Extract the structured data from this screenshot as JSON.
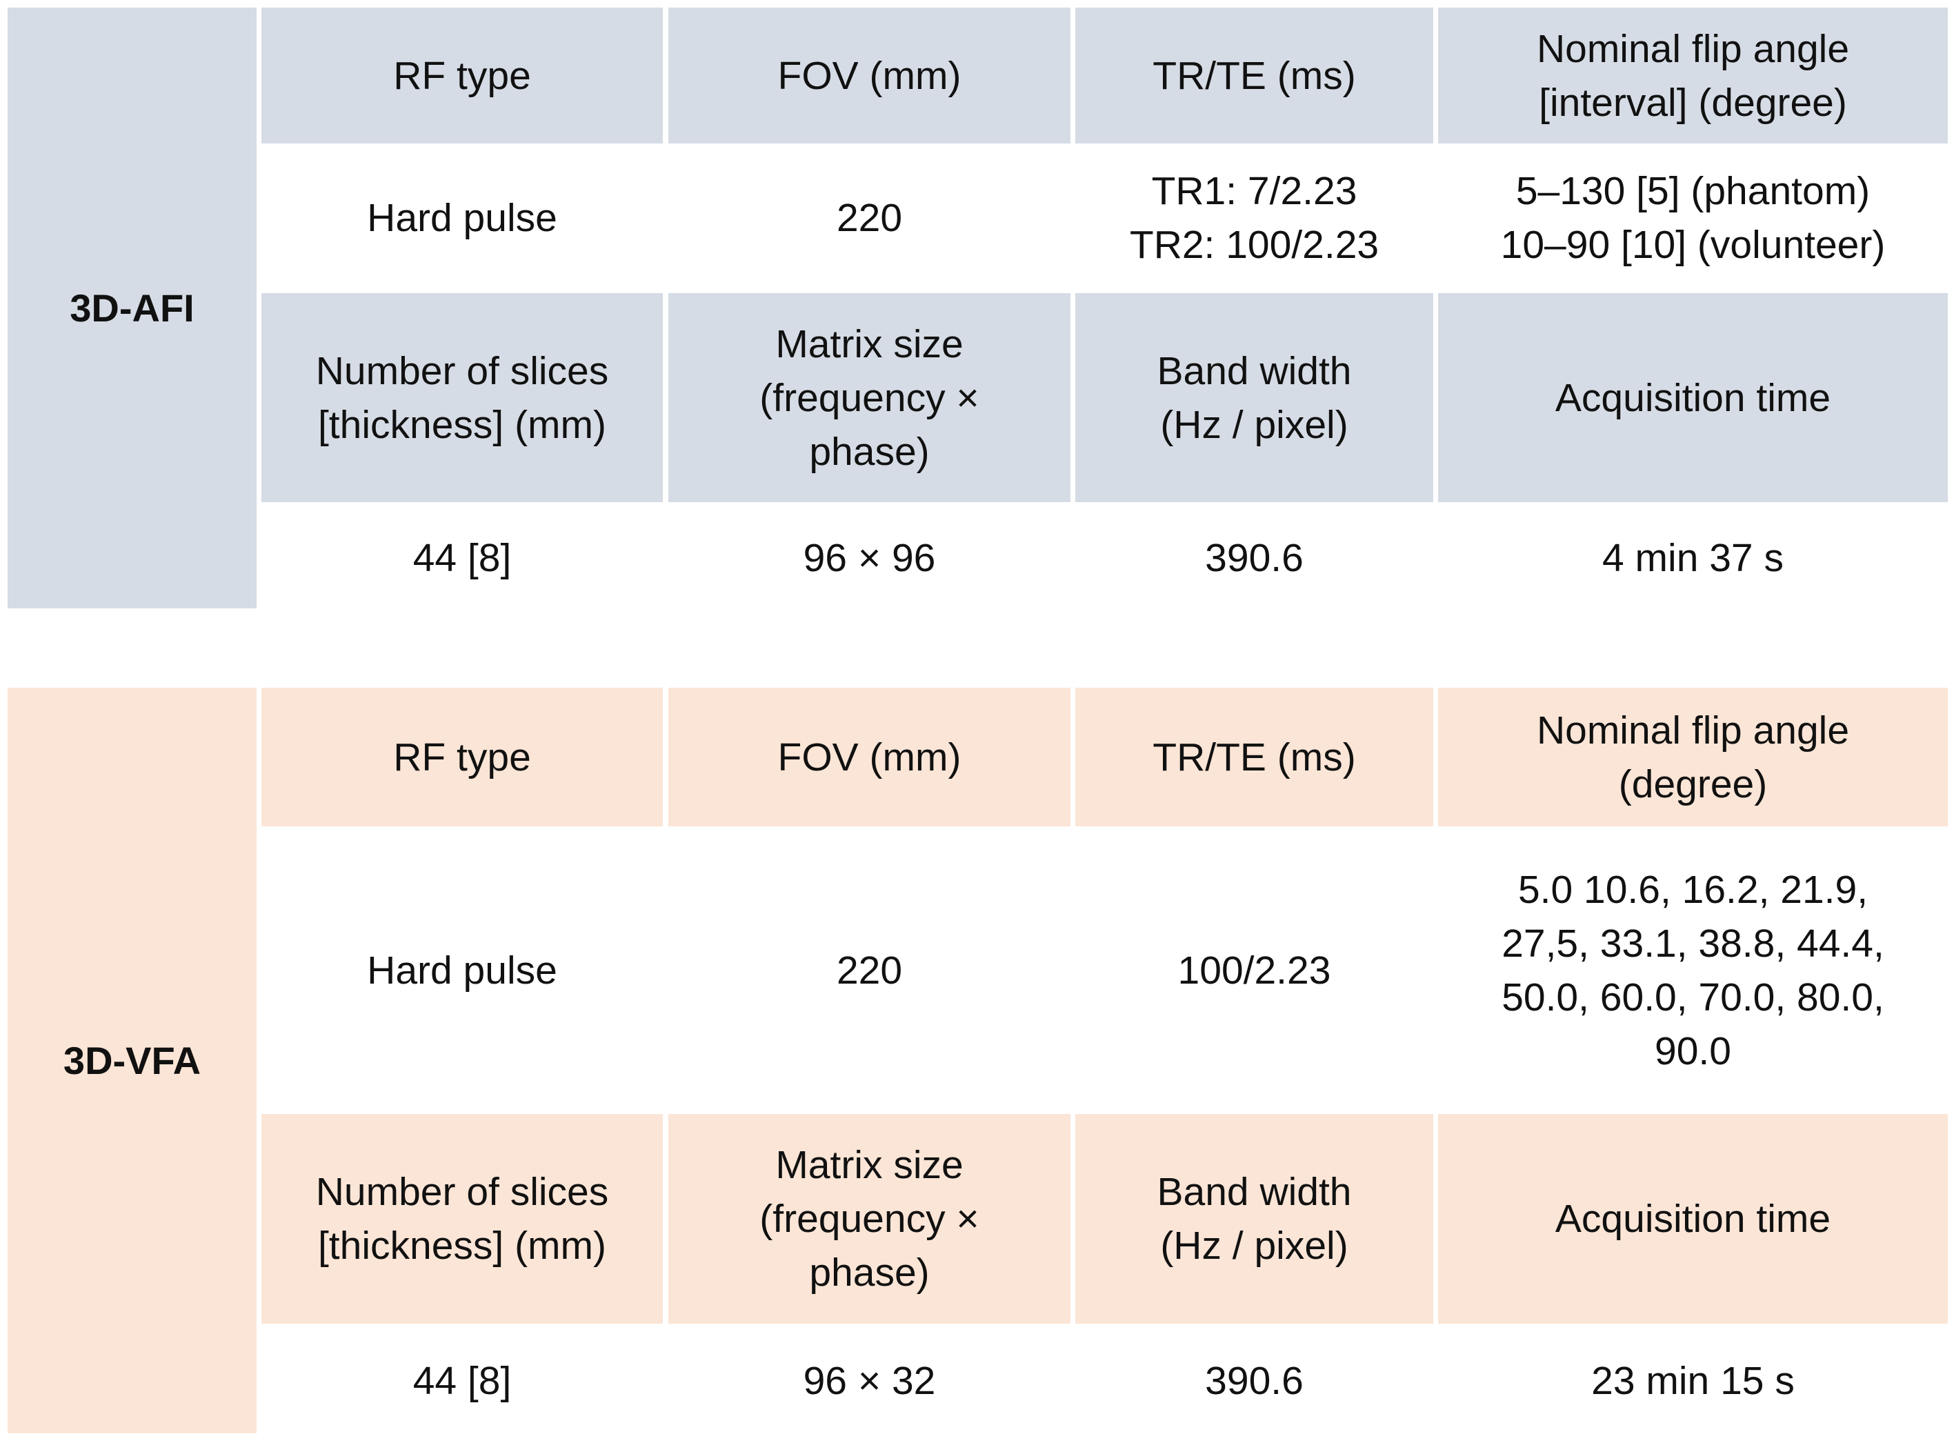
{
  "tables": [
    {
      "label": "3D-AFI",
      "rows": [
        [
          [
            "RF type"
          ],
          [
            "FOV (mm)"
          ],
          [
            "TR/TE (ms)"
          ],
          [
            "Nominal flip angle",
            "[interval] (degree)"
          ]
        ],
        [
          [
            "Hard pulse"
          ],
          [
            "220"
          ],
          [
            "TR1: 7/2.23",
            "TR2: 100/2.23"
          ],
          [
            "5–130 [5] (phantom)",
            "10–90 [10] (volunteer)"
          ]
        ],
        [
          [
            "Number of slices",
            "[thickness] (mm)"
          ],
          [
            "Matrix size",
            "(frequency ×",
            "phase)"
          ],
          [
            "Band width",
            "(Hz / pixel)"
          ],
          [
            "Acquisition time"
          ]
        ],
        [
          [
            "44 [8]"
          ],
          [
            "96 × 96"
          ],
          [
            "390.6"
          ],
          [
            "4 min 37 s"
          ]
        ]
      ]
    },
    {
      "label": "3D-VFA",
      "rows": [
        [
          [
            "RF type"
          ],
          [
            "FOV (mm)"
          ],
          [
            "TR/TE (ms)"
          ],
          [
            "Nominal flip angle",
            "(degree)"
          ]
        ],
        [
          [
            "Hard pulse"
          ],
          [
            "220"
          ],
          [
            "100/2.23"
          ],
          [
            "5.0 10.6, 16.2, 21.9,",
            "27,5, 33.1, 38.8, 44.4,",
            "50.0, 60.0, 70.0, 80.0,",
            "90.0"
          ]
        ],
        [
          [
            "Number of slices",
            "[thickness] (mm)"
          ],
          [
            "Matrix size",
            "(frequency ×",
            "phase)"
          ],
          [
            "Band width",
            "(Hz / pixel)"
          ],
          [
            "Acquisition time"
          ]
        ],
        [
          [
            "44 [8]"
          ],
          [
            "96 × 32"
          ],
          [
            "390.6"
          ],
          [
            "23 min 15 s"
          ]
        ]
      ]
    }
  ]
}
